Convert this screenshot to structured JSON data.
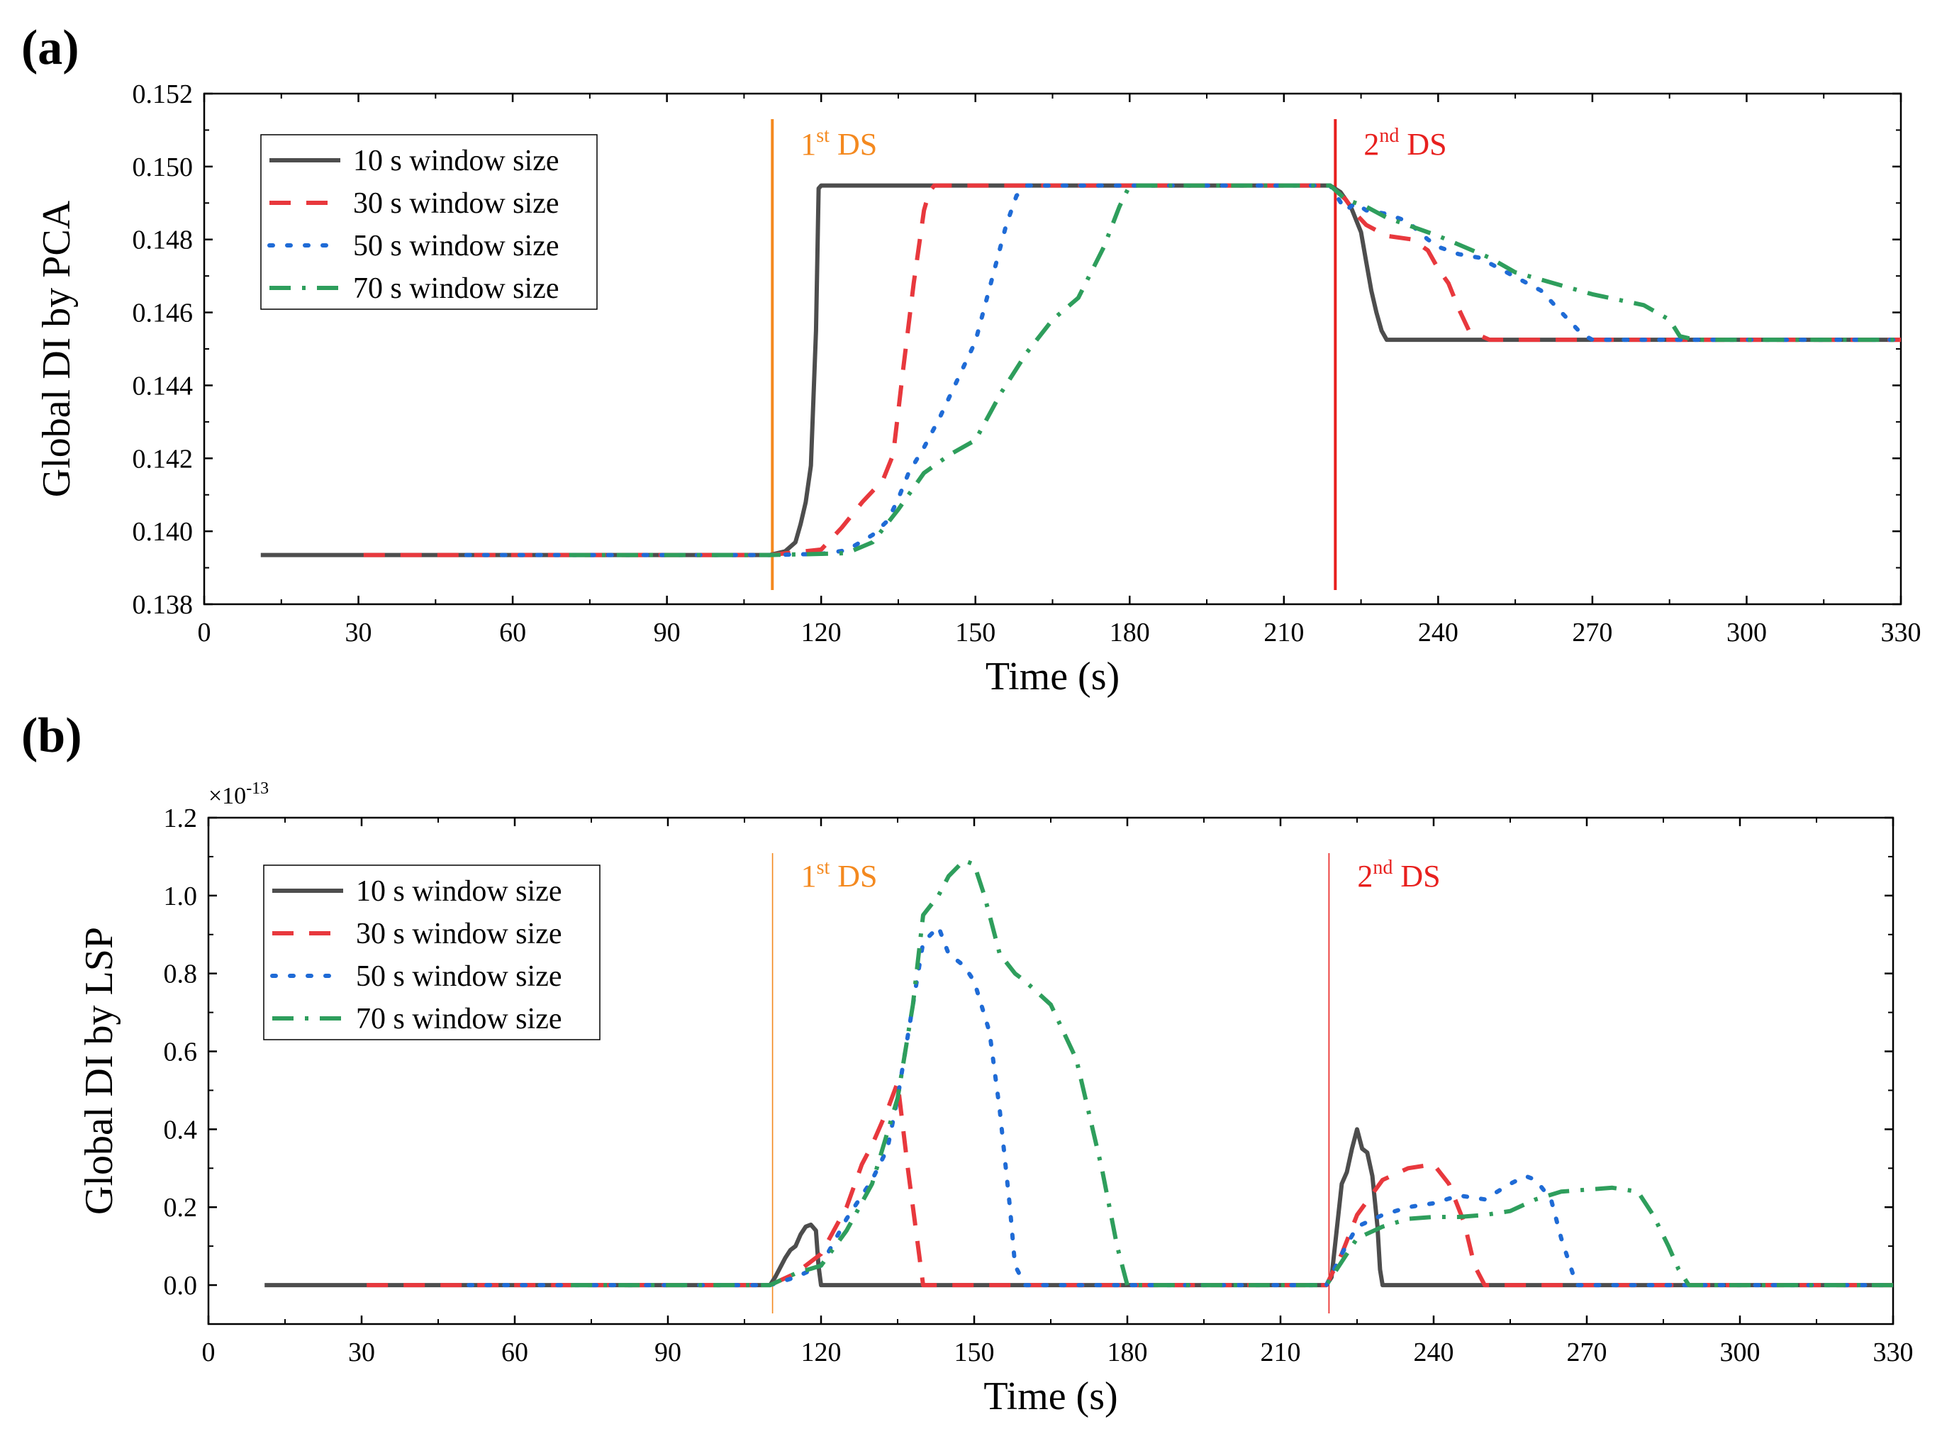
{
  "chart_data": [
    {
      "type": "line",
      "panel_label": "(a)",
      "xlabel": "Time (s)",
      "ylabel": "Global DI by PCA",
      "xlim": [
        0,
        330
      ],
      "ylim": [
        0.138,
        0.152
      ],
      "xticks": [
        "0",
        "30",
        "60",
        "90",
        "120",
        "150",
        "180",
        "210",
        "240",
        "270",
        "300",
        "330"
      ],
      "yticks": [
        "0.138",
        "0.140",
        "0.142",
        "0.144",
        "0.146",
        "0.148",
        "0.150",
        "0.152"
      ],
      "annotations": [
        {
          "x": 110.5,
          "color": "#f4891f",
          "label_base": "1",
          "label_sup": "st",
          "label_tail": " DS"
        },
        {
          "x": 220,
          "color": "#e8201e",
          "label_base": "2",
          "label_sup": "nd",
          "label_tail": " DS"
        }
      ],
      "series": [
        {
          "name": "10 s window size",
          "color": "#4d4d4d",
          "dash": "solid",
          "x": [
            11,
            110,
            113,
            115,
            116,
            117,
            118,
            119,
            119.5,
            120,
            125,
            130,
            140,
            150,
            160,
            170,
            180,
            190,
            200,
            210,
            219,
            221,
            223,
            225,
            226,
            227,
            228,
            229,
            230,
            240,
            250,
            260,
            270,
            280,
            290,
            300,
            310,
            320,
            330
          ],
          "y": [
            0.13935,
            0.13935,
            0.13945,
            0.1397,
            0.1402,
            0.1408,
            0.1418,
            0.1455,
            0.1494,
            0.14948,
            0.14948,
            0.14948,
            0.14948,
            0.14948,
            0.14948,
            0.14948,
            0.14948,
            0.14948,
            0.14948,
            0.14948,
            0.14948,
            0.1493,
            0.1489,
            0.1482,
            0.1474,
            0.1466,
            0.146,
            0.1455,
            0.14525,
            0.14525,
            0.14525,
            0.14525,
            0.14525,
            0.14525,
            0.14525,
            0.14525,
            0.14525,
            0.14525,
            0.14525
          ]
        },
        {
          "name": "30 s window size",
          "color": "#e8383d",
          "dash": "dash",
          "x": [
            31,
            110,
            120,
            124,
            128,
            132,
            134,
            135,
            136,
            138,
            140,
            141,
            142,
            150,
            160,
            170,
            180,
            190,
            200,
            210,
            219,
            222,
            224,
            226,
            230,
            235,
            238,
            240,
            242,
            244,
            246,
            250,
            260,
            270,
            280,
            290,
            300,
            310,
            320,
            330
          ],
          "y": [
            0.13935,
            0.13935,
            0.1395,
            0.1401,
            0.1408,
            0.1414,
            0.1421,
            0.1433,
            0.1445,
            0.1468,
            0.1488,
            0.1493,
            0.14948,
            0.14948,
            0.14948,
            0.14948,
            0.14948,
            0.14948,
            0.14948,
            0.14948,
            0.14948,
            0.1491,
            0.1487,
            0.1484,
            0.1481,
            0.148,
            0.1477,
            0.1472,
            0.1468,
            0.1461,
            0.1455,
            0.14525,
            0.14525,
            0.14525,
            0.14525,
            0.14525,
            0.14525,
            0.14525,
            0.14525,
            0.14525
          ]
        },
        {
          "name": "50 s window size",
          "color": "#1f6bd6",
          "dash": "dot",
          "x": [
            51,
            110,
            120,
            125,
            130,
            133,
            135,
            137,
            140,
            143,
            146,
            150,
            153,
            156,
            158,
            160,
            165,
            170,
            180,
            190,
            200,
            210,
            219,
            222,
            224,
            226,
            230,
            234,
            238,
            240,
            244,
            248,
            252,
            256,
            260,
            264,
            268,
            270,
            280,
            290,
            300,
            310,
            320,
            330
          ],
          "y": [
            0.13935,
            0.13935,
            0.13938,
            0.13948,
            0.1399,
            0.1403,
            0.1409,
            0.1416,
            0.1423,
            0.1431,
            0.144,
            0.1452,
            0.1468,
            0.1484,
            0.1492,
            0.14948,
            0.14948,
            0.14948,
            0.14948,
            0.14948,
            0.14948,
            0.14948,
            0.14948,
            0.1488,
            0.149,
            0.1488,
            0.1487,
            0.1485,
            0.148,
            0.1478,
            0.1476,
            0.1475,
            0.1472,
            0.1469,
            0.1466,
            0.146,
            0.1454,
            0.14525,
            0.14525,
            0.14525,
            0.14525,
            0.14525,
            0.14525,
            0.14525
          ]
        },
        {
          "name": "70 s window size",
          "color": "#2e9e5c",
          "dash": "dashdot",
          "x": [
            71,
            110,
            120,
            125,
            130,
            135,
            140,
            145,
            150,
            155,
            160,
            165,
            170,
            175,
            178,
            180,
            185,
            190,
            200,
            210,
            219,
            222,
            224,
            226,
            230,
            240,
            250,
            255,
            260,
            270,
            280,
            285,
            287,
            290,
            300,
            310,
            320,
            330
          ],
          "y": [
            0.13935,
            0.13935,
            0.13938,
            0.1394,
            0.1397,
            0.1406,
            0.1416,
            0.1421,
            0.1425,
            0.1438,
            0.1449,
            0.1458,
            0.1464,
            0.1478,
            0.1489,
            0.14948,
            0.14948,
            0.14948,
            0.14948,
            0.14948,
            0.14948,
            0.1491,
            0.149,
            0.1489,
            0.1486,
            0.1481,
            0.1475,
            0.1471,
            0.1469,
            0.1465,
            0.1462,
            0.1458,
            0.14535,
            0.14525,
            0.14525,
            0.14525,
            0.14525,
            0.14525
          ]
        }
      ]
    },
    {
      "type": "line",
      "panel_label": "(b)",
      "xlabel": "Time (s)",
      "ylabel": "Global DI by LSP",
      "multiplier": "×10",
      "multiplier_exp": "-13",
      "xlim": [
        0,
        330
      ],
      "ylim": [
        -0.1,
        1.2
      ],
      "xticks": [
        "0",
        "30",
        "60",
        "90",
        "120",
        "150",
        "180",
        "210",
        "240",
        "270",
        "300",
        "330"
      ],
      "yticks": [
        "0.0",
        "0.2",
        "0.4",
        "0.6",
        "0.8",
        "1.0",
        "1.2"
      ],
      "annotations": [
        {
          "x": 110.5,
          "color": "#f4891f",
          "label_base": "1",
          "label_sup": "st",
          "label_tail": " DS"
        },
        {
          "x": 219.5,
          "color": "#e8201e",
          "label_base": "2",
          "label_sup": "nd",
          "label_tail": " DS"
        }
      ],
      "series": [
        {
          "name": "10 s window size",
          "color": "#4d4d4d",
          "dash": "solid",
          "x": [
            11,
            110,
            111,
            113,
            114,
            115,
            116,
            117,
            118,
            119,
            119.5,
            120,
            150,
            180,
            210,
            219,
            220,
            221,
            222,
            223,
            224,
            225,
            226,
            227,
            228,
            229,
            229.5,
            230,
            250,
            270,
            290,
            310,
            330
          ],
          "y": [
            0,
            0,
            0.02,
            0.07,
            0.09,
            0.1,
            0.13,
            0.15,
            0.155,
            0.14,
            0.05,
            0,
            0,
            0,
            0,
            0,
            0.02,
            0.14,
            0.26,
            0.29,
            0.35,
            0.4,
            0.35,
            0.34,
            0.28,
            0.15,
            0.04,
            0,
            0,
            0,
            0,
            0,
            0
          ]
        },
        {
          "name": "30 s window size",
          "color": "#e8383d",
          "dash": "dash",
          "x": [
            31,
            110,
            115,
            120,
            125,
            128,
            130,
            133,
            135,
            137,
            139,
            140,
            150,
            180,
            210,
            219,
            222,
            225,
            230,
            235,
            240,
            243,
            246,
            248,
            250,
            260,
            270,
            290,
            310,
            330
          ],
          "y": [
            0,
            0,
            0.03,
            0.08,
            0.2,
            0.31,
            0.36,
            0.45,
            0.52,
            0.3,
            0.1,
            0,
            0,
            0,
            0,
            0,
            0.08,
            0.18,
            0.27,
            0.3,
            0.31,
            0.26,
            0.16,
            0.05,
            0,
            0,
            0,
            0,
            0,
            0
          ]
        },
        {
          "name": "50 s window size",
          "color": "#1f6bd6",
          "dash": "dot",
          "x": [
            51,
            110,
            115,
            120,
            125,
            130,
            133,
            135,
            138,
            140,
            143,
            145,
            148,
            150,
            153,
            155,
            157,
            158,
            160,
            180,
            210,
            219,
            222,
            225,
            230,
            235,
            240,
            245,
            250,
            255,
            258,
            260,
            263,
            265,
            267,
            268,
            270,
            290,
            310,
            330
          ],
          "y": [
            0,
            0,
            0.02,
            0.05,
            0.17,
            0.27,
            0.35,
            0.48,
            0.72,
            0.88,
            0.92,
            0.85,
            0.82,
            0.78,
            0.65,
            0.45,
            0.2,
            0.05,
            0,
            0,
            0,
            0,
            0.08,
            0.15,
            0.18,
            0.2,
            0.21,
            0.23,
            0.22,
            0.26,
            0.28,
            0.27,
            0.22,
            0.12,
            0.04,
            0,
            0,
            0,
            0,
            0
          ]
        },
        {
          "name": "70 s window size",
          "color": "#2e9e5c",
          "dash": "dashdot",
          "x": [
            71,
            110,
            115,
            120,
            125,
            130,
            135,
            138,
            140,
            143,
            145,
            148,
            150,
            152,
            155,
            158,
            160,
            165,
            170,
            175,
            178,
            180,
            210,
            219,
            222,
            225,
            230,
            235,
            240,
            245,
            250,
            255,
            260,
            265,
            270,
            275,
            280,
            283,
            286,
            288,
            290,
            310,
            330
          ],
          "y": [
            0,
            0,
            0.03,
            0.05,
            0.14,
            0.26,
            0.48,
            0.72,
            0.95,
            1.0,
            1.05,
            1.09,
            1.08,
            1.0,
            0.85,
            0.8,
            0.78,
            0.72,
            0.58,
            0.3,
            0.1,
            0,
            0,
            0,
            0.06,
            0.12,
            0.15,
            0.17,
            0.175,
            0.175,
            0.18,
            0.19,
            0.22,
            0.24,
            0.245,
            0.25,
            0.24,
            0.18,
            0.1,
            0.04,
            0,
            0,
            0
          ]
        }
      ]
    }
  ]
}
